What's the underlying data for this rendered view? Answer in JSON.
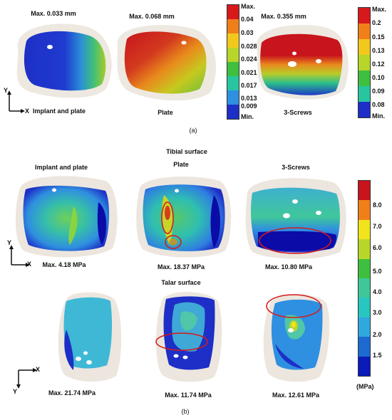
{
  "panel_a": {
    "models": [
      {
        "max_label": "Max. 0.033 mm",
        "caption": "Implant and plate"
      },
      {
        "max_label": "Max. 0.068 mm",
        "caption": "Plate"
      },
      {
        "max_label": "Max. 0.355 mm",
        "caption": "3-Screws"
      }
    ],
    "colorbar1": [
      "Max.",
      "0.04",
      "0.03",
      "0.028",
      "0.024",
      "0.021",
      "0.017",
      "0.013",
      "0.009",
      "Min."
    ],
    "colorbar2": [
      "Max.",
      "0.2",
      "0.15",
      "0.13",
      "0.12",
      "0.10",
      "0.09",
      "0.08",
      "Min."
    ],
    "label": "(a)"
  },
  "panel_b": {
    "tibial_title": "Tibial surface",
    "talar_title": "Talar surface",
    "tibial_models": [
      {
        "caption": "Implant and plate",
        "max_label": "Max. 4.18 MPa"
      },
      {
        "caption": "Plate",
        "max_label": "Max. 18.37 MPa"
      },
      {
        "caption": "3-Screws",
        "max_label": "Max. 10.80 MPa"
      }
    ],
    "talar_models": [
      {
        "max_label": "Max. 21.74 MPa"
      },
      {
        "max_label": "Max. 11.74 MPa"
      },
      {
        "max_label": "Max. 12.61 MPa"
      }
    ],
    "colorbar": [
      "8.0",
      "7.0",
      "6.0",
      "5.0",
      "4.0",
      "3.0",
      "2.0",
      "1.5"
    ],
    "unit": "(MPa)",
    "label": "(b)"
  },
  "axes": {
    "x": "X",
    "y": "Y"
  },
  "colors": {
    "red": "#d7191c",
    "orange": "#f07f1a",
    "yellow": "#f2e41c",
    "green": "#3fbf3f",
    "cyan": "#27c6c0",
    "lightblue": "#3d8ee0",
    "blue": "#1d2fc6",
    "darkblue": "#0b0ba8",
    "bone": "#e9e2d8",
    "annotation": "#d61a1a"
  }
}
